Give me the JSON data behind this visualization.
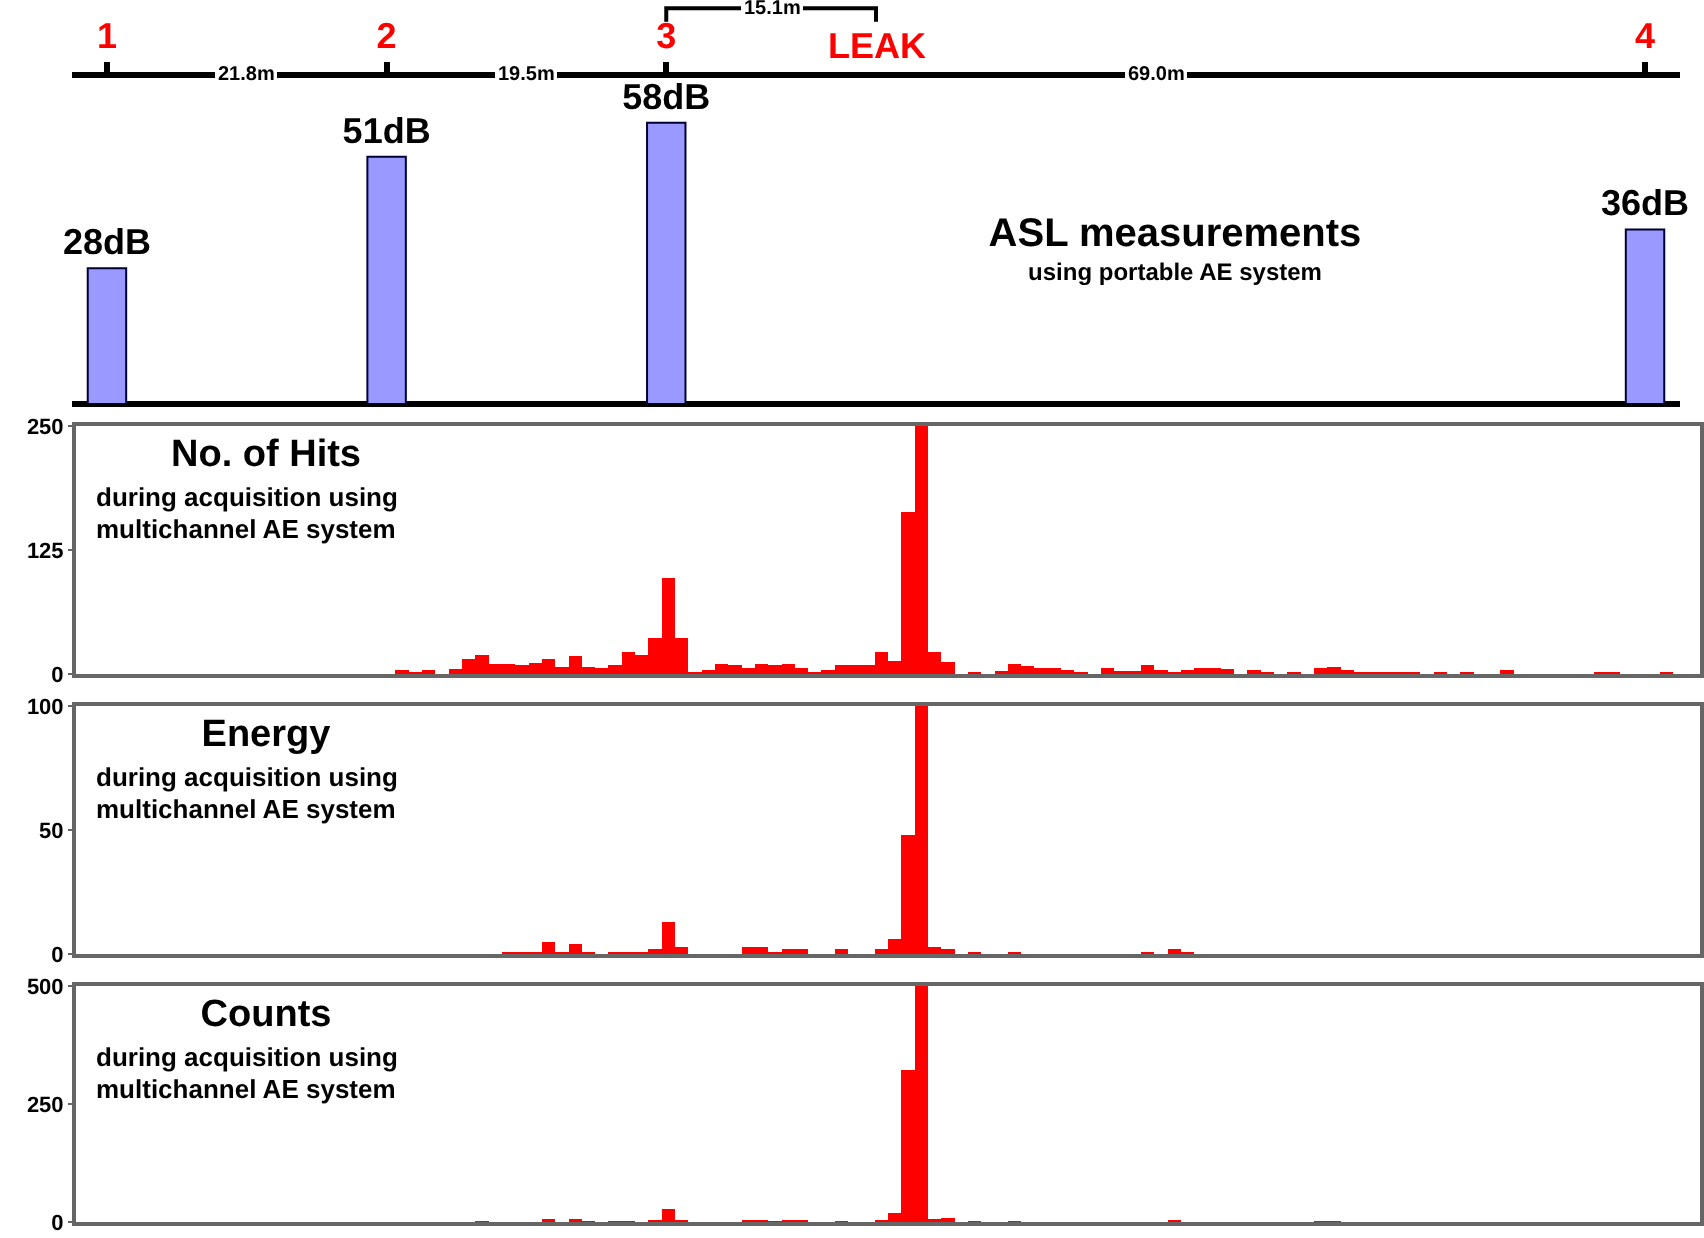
{
  "chart_data": [
    {
      "type": "bar",
      "title": "ASL measurements",
      "subtitle": "using portable AE system",
      "categories": [
        "1",
        null,
        null,
        null,
        "2",
        null,
        null,
        null,
        "3",
        null,
        null,
        null,
        null,
        null,
        null,
        null,
        null,
        null,
        null,
        null,
        null,
        null,
        "4"
      ],
      "values": [
        28,
        null,
        null,
        null,
        51,
        null,
        null,
        null,
        58,
        null,
        null,
        null,
        null,
        null,
        null,
        null,
        null,
        null,
        null,
        null,
        null,
        null,
        36
      ],
      "value_labels": [
        "28dB",
        null,
        null,
        null,
        "51dB",
        null,
        null,
        null,
        "58dB",
        null,
        null,
        null,
        null,
        null,
        null,
        null,
        null,
        null,
        null,
        null,
        null,
        null,
        "36dB"
      ],
      "color": "#9999ff",
      "tick_labels": "x",
      "annotations": [
        "21.8m",
        "19.5m",
        "69.0m",
        "15.1m",
        "LEAK"
      ]
    },
    {
      "type": "bar",
      "title": "No. of Hits",
      "subtitle": "during acquisition using multichannel AE system",
      "categories": [
        null,
        null,
        null,
        null,
        null,
        null,
        null,
        null,
        null,
        null,
        null,
        null,
        null,
        null,
        null,
        null,
        null,
        null,
        null,
        null,
        null,
        null,
        null,
        null,
        null,
        null,
        null,
        null,
        null,
        null,
        null,
        null,
        null,
        null,
        null,
        null,
        null,
        null,
        null,
        null,
        null,
        null,
        null,
        null,
        null,
        null,
        null,
        null,
        null,
        null,
        null,
        null,
        null,
        null,
        null,
        null,
        null,
        null,
        null,
        null,
        null,
        null,
        null,
        null,
        null,
        null,
        null,
        null,
        null,
        null,
        null,
        null,
        null,
        null,
        null,
        null,
        null,
        null,
        null,
        null,
        null,
        null,
        null,
        null,
        null,
        null,
        null,
        null,
        null,
        null,
        null,
        null,
        null,
        null,
        null,
        null,
        null,
        null,
        null,
        null,
        null,
        null,
        null,
        null,
        null,
        null,
        null,
        null,
        null,
        null,
        null,
        null,
        null,
        null,
        null,
        null,
        null,
        null,
        null,
        null,
        null,
        null
      ],
      "values": [
        0,
        0,
        0,
        0,
        0,
        0,
        0,
        0,
        0,
        0,
        0,
        0,
        0,
        0,
        0,
        0,
        0,
        0,
        0,
        0,
        0,
        0,
        0,
        0,
        4,
        2,
        4,
        0,
        5,
        15,
        19,
        10,
        10,
        9,
        11,
        15,
        7,
        18,
        7,
        6,
        9,
        22,
        19,
        36,
        97,
        36,
        2,
        4,
        10,
        9,
        6,
        10,
        9,
        10,
        6,
        2,
        4,
        9,
        9,
        9,
        22,
        13,
        163,
        250,
        22,
        12,
        0,
        2,
        0,
        3,
        10,
        8,
        6,
        6,
        4,
        2,
        0,
        6,
        3,
        3,
        9,
        4,
        2,
        4,
        6,
        6,
        5,
        0,
        4,
        2,
        0,
        2,
        0,
        6,
        7,
        4,
        2,
        2,
        2,
        2,
        2,
        0,
        2,
        0,
        2,
        0,
        0,
        4,
        0,
        0,
        0,
        0,
        0,
        0,
        2,
        2,
        0,
        0,
        0,
        2,
        0,
        0
      ],
      "color": "#ff0000",
      "ylim": [
        0,
        250
      ],
      "yticks": [
        0,
        125,
        250
      ],
      "tick_labels": "y"
    },
    {
      "type": "bar",
      "title": "Energy",
      "subtitle": "during acquisition using multichannel AE system",
      "categories": [
        null,
        null,
        null,
        null,
        null,
        null,
        null,
        null,
        null,
        null,
        null,
        null,
        null,
        null,
        null,
        null,
        null,
        null,
        null,
        null,
        null,
        null,
        null,
        null,
        null,
        null,
        null,
        null,
        null,
        null,
        null,
        null,
        null,
        null,
        null,
        null,
        null,
        null,
        null,
        null,
        null,
        null,
        null,
        null,
        null,
        null,
        null,
        null,
        null,
        null,
        null,
        null,
        null,
        null,
        null,
        null,
        null,
        null,
        null,
        null,
        null,
        null,
        null,
        null,
        null,
        null,
        null,
        null,
        null,
        null,
        null,
        null,
        null,
        null,
        null,
        null,
        null,
        null,
        null,
        null,
        null,
        null,
        null,
        null,
        null,
        null,
        null,
        null,
        null,
        null,
        null,
        null,
        null,
        null,
        null,
        null,
        null,
        null,
        null,
        null,
        null,
        null,
        null,
        null,
        null,
        null,
        null,
        null,
        null,
        null,
        null,
        null,
        null,
        null,
        null,
        null,
        null,
        null,
        null,
        null,
        null,
        null
      ],
      "values": [
        0,
        0,
        0,
        0,
        0,
        0,
        0,
        0,
        0,
        0,
        0,
        0,
        0,
        0,
        0,
        0,
        0,
        0,
        0,
        0,
        0,
        0,
        0,
        0,
        0,
        0,
        0,
        0,
        0,
        0,
        0,
        0,
        1,
        1,
        1,
        5,
        1,
        4,
        1,
        0,
        1,
        1,
        1,
        2,
        13,
        3,
        0,
        0,
        0,
        0,
        3,
        3,
        1,
        2,
        2,
        0,
        0,
        2,
        0,
        0,
        2,
        6,
        48,
        100,
        3,
        2,
        0,
        1,
        0,
        0,
        1,
        0,
        0,
        0,
        0,
        0,
        0,
        0,
        0,
        0,
        1,
        0,
        2,
        1,
        0,
        0,
        0,
        0,
        0,
        0,
        0,
        0,
        0,
        0,
        0,
        0,
        0,
        0,
        0,
        0,
        0,
        0,
        0,
        0,
        0,
        0,
        0,
        0,
        0,
        0,
        0,
        0,
        0,
        0,
        0,
        0,
        0,
        0,
        0,
        0,
        0,
        0
      ],
      "color": "#ff0000",
      "ylim": [
        0,
        100
      ],
      "yticks": [
        0,
        50,
        100
      ],
      "tick_labels": "y"
    },
    {
      "type": "bar",
      "title": "Counts",
      "subtitle": "during acquisition using multichannel AE system",
      "categories": [
        null,
        null,
        null,
        null,
        null,
        null,
        null,
        null,
        null,
        null,
        null,
        null,
        null,
        null,
        null,
        null,
        null,
        null,
        null,
        null,
        null,
        null,
        null,
        null,
        null,
        null,
        null,
        null,
        null,
        null,
        null,
        null,
        null,
        null,
        null,
        null,
        null,
        null,
        null,
        null,
        null,
        null,
        null,
        null,
        null,
        null,
        null,
        null,
        null,
        null,
        null,
        null,
        null,
        null,
        null,
        null,
        null,
        null,
        null,
        null,
        null,
        null,
        null,
        null,
        null,
        null,
        null,
        null,
        null,
        null,
        null,
        null,
        null,
        null,
        null,
        null,
        null,
        null,
        null,
        null,
        null,
        null,
        null,
        null,
        null,
        null,
        null,
        null,
        null,
        null,
        null,
        null,
        null,
        null,
        null,
        null,
        null,
        null,
        null,
        null,
        null,
        null,
        null,
        null,
        null,
        null,
        null,
        null,
        null,
        null,
        null,
        null,
        null,
        null,
        null,
        null,
        null,
        null,
        null,
        null,
        null,
        null
      ],
      "values": [
        0,
        0,
        0,
        0,
        0,
        0,
        0,
        0,
        0,
        0,
        0,
        0,
        0,
        0,
        0,
        0,
        0,
        0,
        0,
        0,
        0,
        0,
        0,
        0,
        0,
        0,
        0,
        0,
        0,
        0,
        2,
        0,
        0,
        0,
        0,
        6,
        0,
        6,
        2,
        0,
        3,
        3,
        0,
        5,
        28,
        5,
        0,
        0,
        0,
        0,
        5,
        5,
        2,
        5,
        5,
        0,
        0,
        3,
        0,
        0,
        4,
        19,
        323,
        500,
        6,
        9,
        0,
        2,
        0,
        0,
        2,
        0,
        0,
        0,
        0,
        0,
        0,
        0,
        0,
        0,
        0,
        0,
        4,
        0,
        0,
        0,
        0,
        0,
        0,
        0,
        0,
        0,
        0,
        2,
        2,
        0,
        0,
        0,
        0,
        0,
        0,
        0,
        0,
        0,
        0,
        0,
        0,
        0,
        0,
        0,
        0,
        0,
        0,
        0,
        0,
        0,
        0,
        0,
        0,
        0,
        0,
        0
      ],
      "color": "#ff0000",
      "ylim": [
        0,
        500
      ],
      "yticks": [
        0,
        250,
        500
      ],
      "tick_labels": "y"
    }
  ]
}
